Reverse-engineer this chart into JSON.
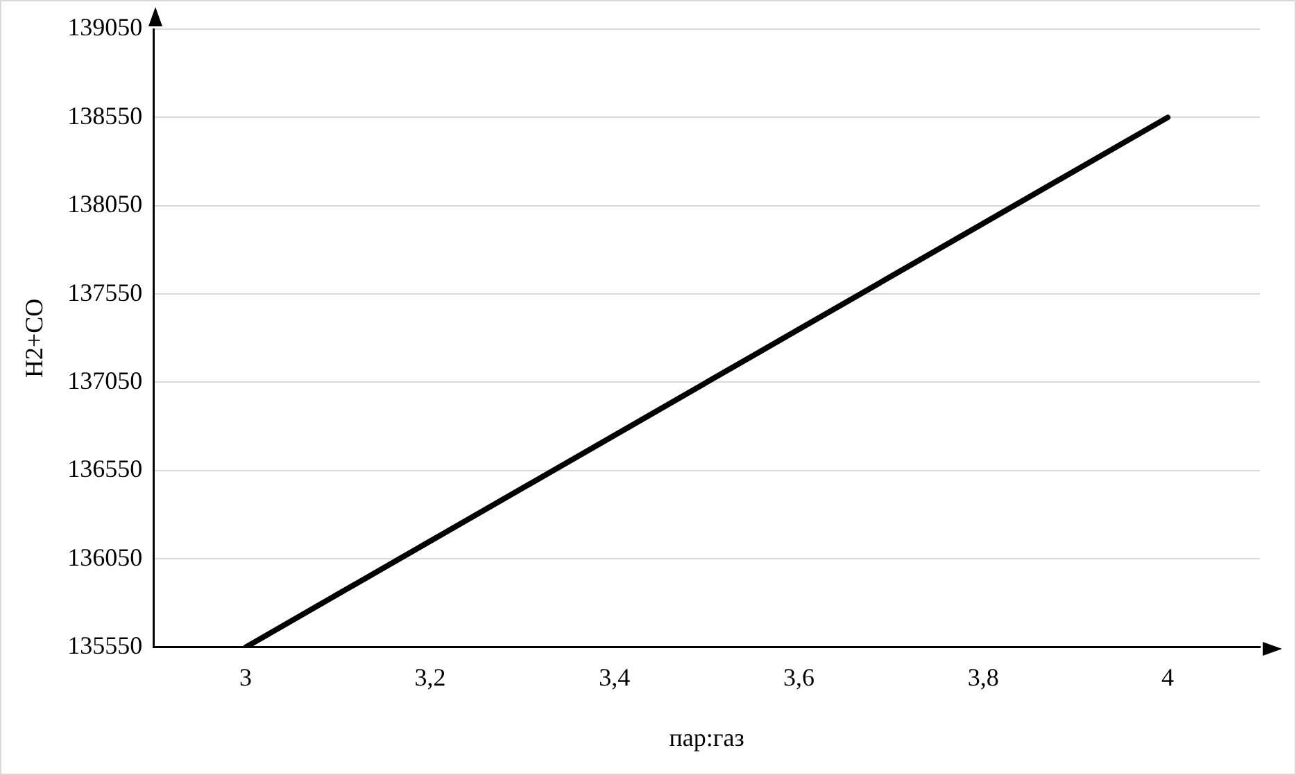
{
  "chart_data": {
    "type": "line",
    "xlabel": "пар:газ",
    "ylabel": "H2+CO",
    "categories": [
      "3",
      "3,2",
      "3,4",
      "3,6",
      "3,8",
      "4"
    ],
    "series": [
      {
        "color": "#000000",
        "values": [
          135550,
          136150,
          136750,
          137350,
          137950,
          138550
        ]
      }
    ],
    "ylim": [
      135550,
      139050
    ],
    "yticks": [
      135550,
      136050,
      136550,
      137050,
      137550,
      138050,
      138550,
      139050
    ],
    "grid": "y",
    "legend": false,
    "marker": "none",
    "line_style": "solid"
  }
}
